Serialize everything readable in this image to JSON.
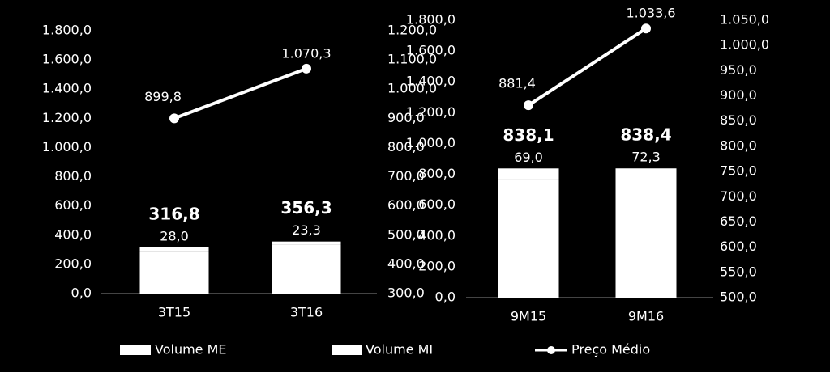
{
  "chart_data": [
    {
      "type": "bar",
      "categories": [
        "3T15",
        "3T16"
      ],
      "series": [
        {
          "name": "Volume ME",
          "color": "#ffffff",
          "values": [
            288.8,
            333.0
          ]
        },
        {
          "name": "Volume MI",
          "color": "#ffffff",
          "values": [
            28.0,
            23.3
          ],
          "value_labels": [
            "28,0",
            "23,3"
          ]
        },
        {
          "name": "Preço Médio",
          "type": "line",
          "axis": "y2",
          "color": "#ffffff",
          "values": [
            899.8,
            1070.3
          ],
          "value_labels": [
            "899,8",
            "1.070,3"
          ]
        }
      ],
      "totals": [
        316.8,
        356.3
      ],
      "total_labels": [
        "316,8",
        "356,3"
      ],
      "ylim": [
        0,
        1800
      ],
      "yticks": [
        {
          "value": 0,
          "label": "0,0"
        },
        {
          "value": 200,
          "label": "200,0"
        },
        {
          "value": 400,
          "label": "400,0"
        },
        {
          "value": 600,
          "label": "600,0"
        },
        {
          "value": 800,
          "label": "800,0"
        },
        {
          "value": 1000,
          "label": "1.000,0"
        },
        {
          "value": 1200,
          "label": "1.200,0"
        },
        {
          "value": 1400,
          "label": "1.400,0"
        },
        {
          "value": 1600,
          "label": "1.600,0"
        },
        {
          "value": 1800,
          "label": "1.800,0"
        }
      ],
      "y2lim": [
        300,
        1200
      ],
      "y2ticks": [
        {
          "value": 300,
          "label": "300,0"
        },
        {
          "value": 400,
          "label": "400,0"
        },
        {
          "value": 500,
          "label": "500,0"
        },
        {
          "value": 600,
          "label": "600,0"
        },
        {
          "value": 700,
          "label": "700,0"
        },
        {
          "value": 800,
          "label": "800,0"
        },
        {
          "value": 900,
          "label": "900,0"
        },
        {
          "value": 1000,
          "label": "1.000,0"
        },
        {
          "value": 1100,
          "label": "1.100,0"
        },
        {
          "value": 1200,
          "label": "1.200,0"
        }
      ]
    },
    {
      "type": "bar",
      "categories": [
        "9M15",
        "9M16"
      ],
      "series": [
        {
          "name": "Volume ME",
          "color": "#ffffff",
          "values": [
            769.1,
            766.1
          ]
        },
        {
          "name": "Volume MI",
          "color": "#ffffff",
          "values": [
            69.0,
            72.3
          ],
          "value_labels": [
            "69,0",
            "72,3"
          ]
        },
        {
          "name": "Preço Médio",
          "type": "line",
          "axis": "y2",
          "color": "#ffffff",
          "values": [
            881.4,
            1033.6
          ],
          "value_labels": [
            "881,4",
            "1.033,6"
          ]
        }
      ],
      "totals": [
        838.1,
        838.4
      ],
      "total_labels": [
        "838,1",
        "838,4"
      ],
      "ylim": [
        0,
        1800
      ],
      "yticks": [
        {
          "value": 0,
          "label": "0,0"
        },
        {
          "value": 200,
          "label": "200,0"
        },
        {
          "value": 400,
          "label": "400,0"
        },
        {
          "value": 600,
          "label": "600,0"
        },
        {
          "value": 800,
          "label": "800,0"
        },
        {
          "value": 1000,
          "label": "1.000,0"
        },
        {
          "value": 1200,
          "label": "1.200,0"
        },
        {
          "value": 1400,
          "label": "1.400,0"
        },
        {
          "value": 1600,
          "label": "1.600,0"
        },
        {
          "value": 1800,
          "label": "1.800,0"
        }
      ],
      "y2lim": [
        500,
        1050
      ],
      "y2ticks": [
        {
          "value": 500,
          "label": "500,0"
        },
        {
          "value": 550,
          "label": "550,0"
        },
        {
          "value": 600,
          "label": "600,0"
        },
        {
          "value": 650,
          "label": "650,0"
        },
        {
          "value": 700,
          "label": "700,0"
        },
        {
          "value": 750,
          "label": "750,0"
        },
        {
          "value": 800,
          "label": "800,0"
        },
        {
          "value": 850,
          "label": "850,0"
        },
        {
          "value": 900,
          "label": "900,0"
        },
        {
          "value": 950,
          "label": "950,0"
        },
        {
          "value": 1000,
          "label": "1.000,0"
        },
        {
          "value": 1050,
          "label": "1.050,0"
        }
      ]
    }
  ]
}
